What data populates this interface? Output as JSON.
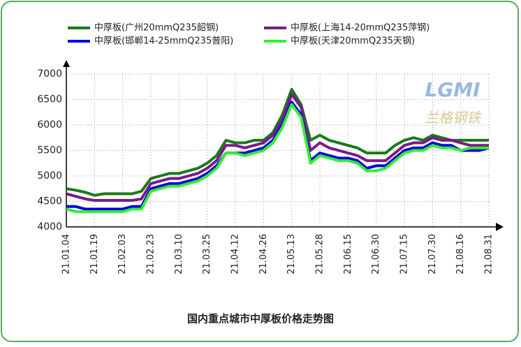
{
  "chart_data": {
    "type": "line",
    "title": "国内重点城市中厚板价格走势图",
    "logo": "LGMI",
    "logo_caption": "兰格钢铁",
    "categories": [
      "21.01.04",
      null,
      null,
      "21.01.19",
      null,
      null,
      "21.02.03",
      null,
      null,
      "21.02.23",
      null,
      null,
      "21.03.10",
      null,
      null,
      "21.03.25",
      null,
      null,
      "21.04.12",
      null,
      null,
      "21.04.26",
      null,
      null,
      "21.05.13",
      null,
      null,
      "21.05.28",
      null,
      null,
      "21.06.15",
      null,
      null,
      "21.06.30",
      null,
      null,
      "21.07.15",
      null,
      null,
      "21.07.30",
      null,
      null,
      "21.08.16",
      null,
      null,
      "21.08.31"
    ],
    "series": [
      {
        "name": "中厚板(广州20mmQ235韶钢)",
        "color": "#1a7a1a",
        "values": [
          4750,
          4720,
          4680,
          4620,
          4650,
          4650,
          4650,
          4650,
          4700,
          4950,
          5000,
          5050,
          5050,
          5100,
          5150,
          5250,
          5400,
          5700,
          5650,
          5650,
          5700,
          5700,
          5850,
          6200,
          6700,
          6400,
          5700,
          5800,
          5700,
          5650,
          5600,
          5550,
          5450,
          5450,
          5450,
          5600,
          5700,
          5750,
          5700,
          5800,
          5750,
          5700,
          5700,
          5700,
          5700,
          5700
        ]
      },
      {
        "name": "中厚板(上海14-20mmQ235萍钢)",
        "color": "#7a1a8a",
        "values": [
          4650,
          4600,
          4550,
          4520,
          4520,
          4520,
          4520,
          4520,
          4550,
          4850,
          4900,
          4950,
          4950,
          5000,
          5050,
          5150,
          5300,
          5600,
          5600,
          5550,
          5600,
          5650,
          5800,
          6100,
          6600,
          6350,
          5500,
          5650,
          5550,
          5500,
          5450,
          5400,
          5300,
          5300,
          5300,
          5450,
          5600,
          5650,
          5650,
          5750,
          5700,
          5700,
          5650,
          5600,
          5600,
          5600
        ]
      },
      {
        "name": "中厚板(邯郸14-25mmQ235普阳)",
        "color": "#0000e0",
        "values": [
          4400,
          4400,
          4350,
          4350,
          4350,
          4350,
          4350,
          4400,
          4400,
          4750,
          4800,
          4850,
          4850,
          4900,
          4950,
          5050,
          5200,
          5450,
          5450,
          5450,
          5500,
          5550,
          5700,
          6000,
          6450,
          6200,
          5300,
          5450,
          5400,
          5350,
          5350,
          5300,
          5150,
          5200,
          5200,
          5350,
          5500,
          5550,
          5550,
          5650,
          5600,
          5600,
          5500,
          5500,
          5500,
          5550
        ]
      },
      {
        "name": "中厚板(天津20mmQ235天钢)",
        "color": "#33ee33",
        "values": [
          4350,
          4300,
          4300,
          4300,
          4300,
          4300,
          4300,
          4350,
          4350,
          4700,
          4750,
          4800,
          4800,
          4850,
          4900,
          5000,
          5150,
          5450,
          5450,
          5400,
          5450,
          5500,
          5650,
          5950,
          6400,
          6150,
          5250,
          5400,
          5350,
          5300,
          5300,
          5250,
          5100,
          5100,
          5150,
          5300,
          5450,
          5500,
          5500,
          5600,
          5550,
          5550,
          5500,
          5550,
          5550,
          5550
        ]
      }
    ],
    "ylim": [
      4000,
      7000
    ],
    "yticks": [
      4000,
      4500,
      5000,
      5500,
      6000,
      6500,
      7000
    ],
    "grid": true
  }
}
